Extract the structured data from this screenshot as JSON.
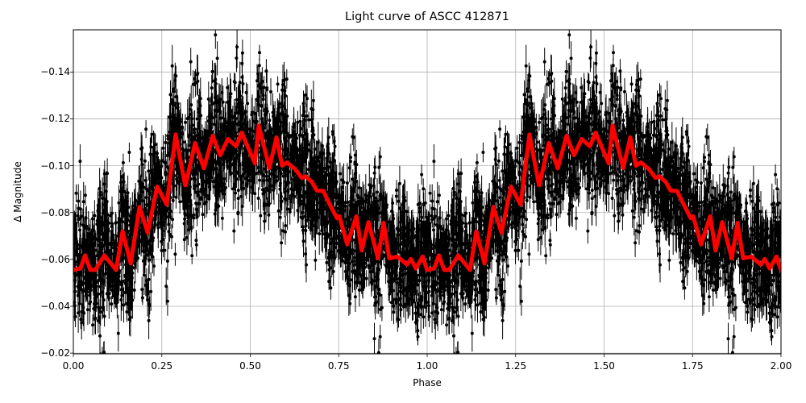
{
  "chart_data": {
    "type": "scatter",
    "title": "Light curve of ASCC 412871",
    "xlabel": "Phase",
    "ylabel": "Δ Magnitude",
    "xlim": [
      0.0,
      2.0
    ],
    "ylim": [
      -0.0197,
      -0.158
    ],
    "y_inverted": true,
    "grid": true,
    "x_ticks": [
      "0.00",
      "0.25",
      "0.50",
      "0.75",
      "1.00",
      "1.25",
      "1.50",
      "1.75",
      "2.00"
    ],
    "x_tick_values": [
      0.0,
      0.25,
      0.5,
      0.75,
      1.0,
      1.25,
      1.5,
      1.75,
      2.0
    ],
    "y_ticks": [
      "−0.14",
      "−0.12",
      "−0.10",
      "−0.08",
      "−0.06",
      "−0.04",
      "−0.02"
    ],
    "y_tick_values": [
      -0.14,
      -0.12,
      -0.1,
      -0.08,
      -0.06,
      -0.04,
      -0.02
    ],
    "series": [
      {
        "name": "observations (with error bars)",
        "style": "black points with vertical error bars",
        "color": "#000000",
        "description": "dense cloud of phase-folded photometric points spanning roughly -0.02 to -0.16 mag, repeated over two cycles"
      },
      {
        "name": "model fit",
        "style": "thick red line",
        "color": "#ff0000",
        "x": [
          0.0,
          0.02,
          0.033,
          0.048,
          0.062,
          0.088,
          0.121,
          0.139,
          0.162,
          0.187,
          0.21,
          0.237,
          0.264,
          0.289,
          0.316,
          0.317,
          0.344,
          0.369,
          0.394,
          0.415,
          0.437,
          0.46,
          0.476,
          0.513,
          0.524,
          0.554,
          0.574,
          0.59,
          0.604,
          0.627,
          0.645,
          0.656,
          0.674,
          0.688,
          0.697,
          0.706,
          0.727,
          0.745,
          0.752,
          0.774,
          0.8,
          0.815,
          0.834,
          0.861,
          0.877,
          0.893,
          0.916,
          0.943,
          0.954,
          0.968,
          0.987,
          1.0
        ],
        "y": [
          -0.0555,
          -0.0562,
          -0.0617,
          -0.0555,
          -0.0555,
          -0.0617,
          -0.0555,
          -0.072,
          -0.0583,
          -0.0824,
          -0.0714,
          -0.0911,
          -0.0834,
          -0.1133,
          -0.0917,
          -0.0917,
          -0.1097,
          -0.0989,
          -0.1128,
          -0.1045,
          -0.1114,
          -0.1083,
          -0.1141,
          -0.101,
          -0.1172,
          -0.099,
          -0.1121,
          -0.1,
          -0.1014,
          -0.0985,
          -0.0948,
          -0.0955,
          -0.0931,
          -0.0894,
          -0.0893,
          -0.0893,
          -0.0828,
          -0.0776,
          -0.0784,
          -0.0664,
          -0.0784,
          -0.0638,
          -0.0759,
          -0.0605,
          -0.0756,
          -0.0605,
          -0.0612,
          -0.0578,
          -0.0602,
          -0.0561,
          -0.0612,
          -0.0555
        ]
      }
    ]
  }
}
